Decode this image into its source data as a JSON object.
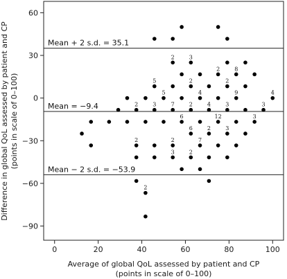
{
  "chart_data": {
    "type": "scatter",
    "xlabel": [
      "Average of global QoL assessed by patient and CP",
      "(points in scale of 0–100)"
    ],
    "ylabel": [
      "Difference in global QoL assessed by patient and CP",
      "(points in scale of 0–100)"
    ],
    "xlim": [
      -5,
      105
    ],
    "ylim": [
      -100,
      68
    ],
    "xticks": [
      {
        "value": 0,
        "label": "0"
      },
      {
        "value": 20,
        "label": "20"
      },
      {
        "value": 40,
        "label": "40"
      },
      {
        "value": 60,
        "label": "60"
      },
      {
        "value": 80,
        "label": "80"
      },
      {
        "value": 100,
        "label": "100"
      }
    ],
    "yticks": [
      {
        "value": 60,
        "label": "60"
      },
      {
        "value": 30,
        "label": "30"
      },
      {
        "value": 0,
        "label": "0"
      },
      {
        "value": -30,
        "label": "−30"
      },
      {
        "value": -60,
        "label": "−60"
      },
      {
        "value": -90,
        "label": "−90"
      }
    ],
    "grid": false,
    "marker_color": "#000000",
    "reference_lines": [
      {
        "value": 35.1,
        "label": "Mean + 2 s.d. = 35.1"
      },
      {
        "value": -9.4,
        "label": "Mean = −9.4"
      },
      {
        "value": -53.9,
        "label": "Mean − 2 s.d. = −53.9"
      }
    ],
    "points": [
      {
        "x": 45.8,
        "y": 41.7
      },
      {
        "x": 58.3,
        "y": 50
      },
      {
        "x": 54.2,
        "y": 41.7
      },
      {
        "x": 75,
        "y": 50
      },
      {
        "x": 79.2,
        "y": 41.7
      },
      {
        "x": 54.2,
        "y": 25,
        "n": 2
      },
      {
        "x": 62.5,
        "y": 25,
        "n": 3
      },
      {
        "x": 79.2,
        "y": 25
      },
      {
        "x": 87.5,
        "y": 25
      },
      {
        "x": 58.3,
        "y": 16.7
      },
      {
        "x": 66.7,
        "y": 16.7
      },
      {
        "x": 75,
        "y": 16.7,
        "n": 2
      },
      {
        "x": 83.3,
        "y": 16.7,
        "n": 8
      },
      {
        "x": 91.7,
        "y": 16.7
      },
      {
        "x": 45.8,
        "y": 8.3,
        "n": 5
      },
      {
        "x": 54.2,
        "y": 8.3
      },
      {
        "x": 62.5,
        "y": 8.3,
        "n": 2
      },
      {
        "x": 70.8,
        "y": 8.3
      },
      {
        "x": 79.2,
        "y": 8.3,
        "n": 2
      },
      {
        "x": 87.5,
        "y": 8.3
      },
      {
        "x": 33.3,
        "y": 0
      },
      {
        "x": 41.7,
        "y": 0
      },
      {
        "x": 50,
        "y": 0,
        "n": 5
      },
      {
        "x": 58.3,
        "y": 0
      },
      {
        "x": 66.7,
        "y": 0,
        "n": 4
      },
      {
        "x": 75,
        "y": 0
      },
      {
        "x": 83.3,
        "y": 0,
        "n": 9
      },
      {
        "x": 100,
        "y": 0,
        "n": 4
      },
      {
        "x": 29.2,
        "y": -8.3
      },
      {
        "x": 37.5,
        "y": -8.3,
        "n": 2
      },
      {
        "x": 45.8,
        "y": -8.3,
        "n": 3
      },
      {
        "x": 54.2,
        "y": -8.3,
        "n": 7
      },
      {
        "x": 62.5,
        "y": -8.3,
        "n": 2
      },
      {
        "x": 70.8,
        "y": -8.3,
        "n": 4
      },
      {
        "x": 79.2,
        "y": -8.3,
        "n": 3
      },
      {
        "x": 87.5,
        "y": -8.3
      },
      {
        "x": 95.8,
        "y": -8.3,
        "n": 3
      },
      {
        "x": 16.7,
        "y": -16.7
      },
      {
        "x": 25,
        "y": -16.7
      },
      {
        "x": 33.3,
        "y": -16.7
      },
      {
        "x": 41.7,
        "y": -16.7
      },
      {
        "x": 50,
        "y": -16.7
      },
      {
        "x": 58.3,
        "y": -16.7,
        "n": 6
      },
      {
        "x": 66.7,
        "y": -16.7
      },
      {
        "x": 75,
        "y": -16.7,
        "n": 12
      },
      {
        "x": 83.3,
        "y": -16.7
      },
      {
        "x": 91.7,
        "y": -16.7,
        "n": 3
      },
      {
        "x": 12.5,
        "y": -25
      },
      {
        "x": 62.5,
        "y": -25,
        "n": 6
      },
      {
        "x": 70.8,
        "y": -25,
        "n": 2
      },
      {
        "x": 79.2,
        "y": -25,
        "n": 3
      },
      {
        "x": 87.5,
        "y": -25
      },
      {
        "x": 16.7,
        "y": -33.3
      },
      {
        "x": 37.5,
        "y": -33.3,
        "n": 2
      },
      {
        "x": 45.8,
        "y": -33.3
      },
      {
        "x": 54.2,
        "y": -33.3,
        "n": 2
      },
      {
        "x": 66.7,
        "y": -33.3,
        "n": 7
      },
      {
        "x": 75,
        "y": -33.3
      },
      {
        "x": 83.3,
        "y": -33.3
      },
      {
        "x": 37.5,
        "y": -41.7
      },
      {
        "x": 45.8,
        "y": -41.7
      },
      {
        "x": 54.2,
        "y": -41.7,
        "n": 3
      },
      {
        "x": 62.5,
        "y": -41.7,
        "n": 2
      },
      {
        "x": 70.8,
        "y": -41.7
      },
      {
        "x": 79.2,
        "y": -41.7
      },
      {
        "x": 58.3,
        "y": -50
      },
      {
        "x": 66.7,
        "y": -50
      },
      {
        "x": 37.5,
        "y": -58.3
      },
      {
        "x": 70.8,
        "y": -58.3
      },
      {
        "x": 41.7,
        "y": -66.7,
        "n": 2
      },
      {
        "x": 41.7,
        "y": -83.3
      }
    ]
  }
}
